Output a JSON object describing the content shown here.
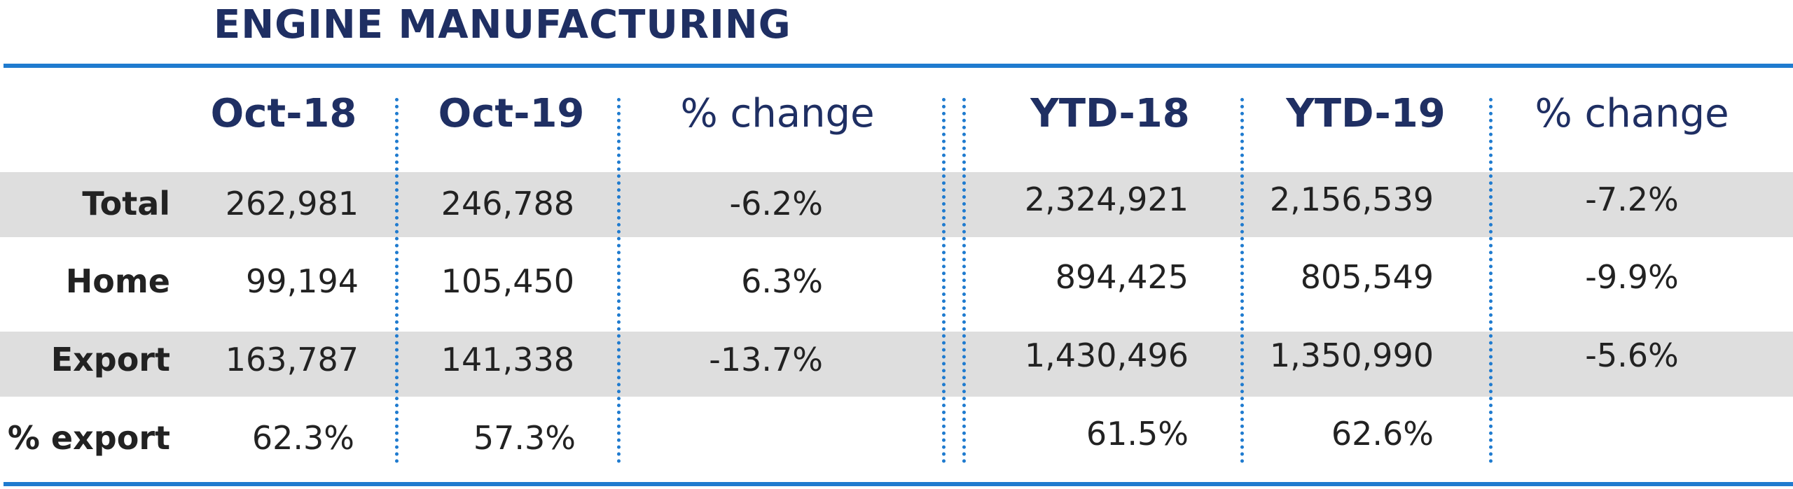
{
  "title": "ENGINE MANUFACTURING",
  "columns": [
    "Oct-18",
    "Oct-19",
    "% change",
    "YTD-18",
    "YTD-19",
    "% change"
  ],
  "rows": [
    {
      "label": "Total",
      "values": [
        "262,981",
        "246,788",
        "-6.2%",
        "2,324,921",
        "2,156,539",
        "-7.2%"
      ]
    },
    {
      "label": "Home",
      "values": [
        "99,194",
        "105,450",
        "6.3%",
        "894,425",
        "805,549",
        "-9.9%"
      ]
    },
    {
      "label": "Export",
      "values": [
        "163,787",
        "141,338",
        "-13.7%",
        "1,430,496",
        "1,350,990",
        "-5.6%"
      ]
    },
    {
      "label": "% export",
      "values": [
        "62.3%",
        "57.3%",
        "",
        "61.5%",
        "62.6%",
        ""
      ]
    }
  ],
  "colors": {
    "accent_blue": "#1f7bcf",
    "header_navy": "#1f2f63",
    "band_gray": "#dedede",
    "text": "#222222"
  }
}
